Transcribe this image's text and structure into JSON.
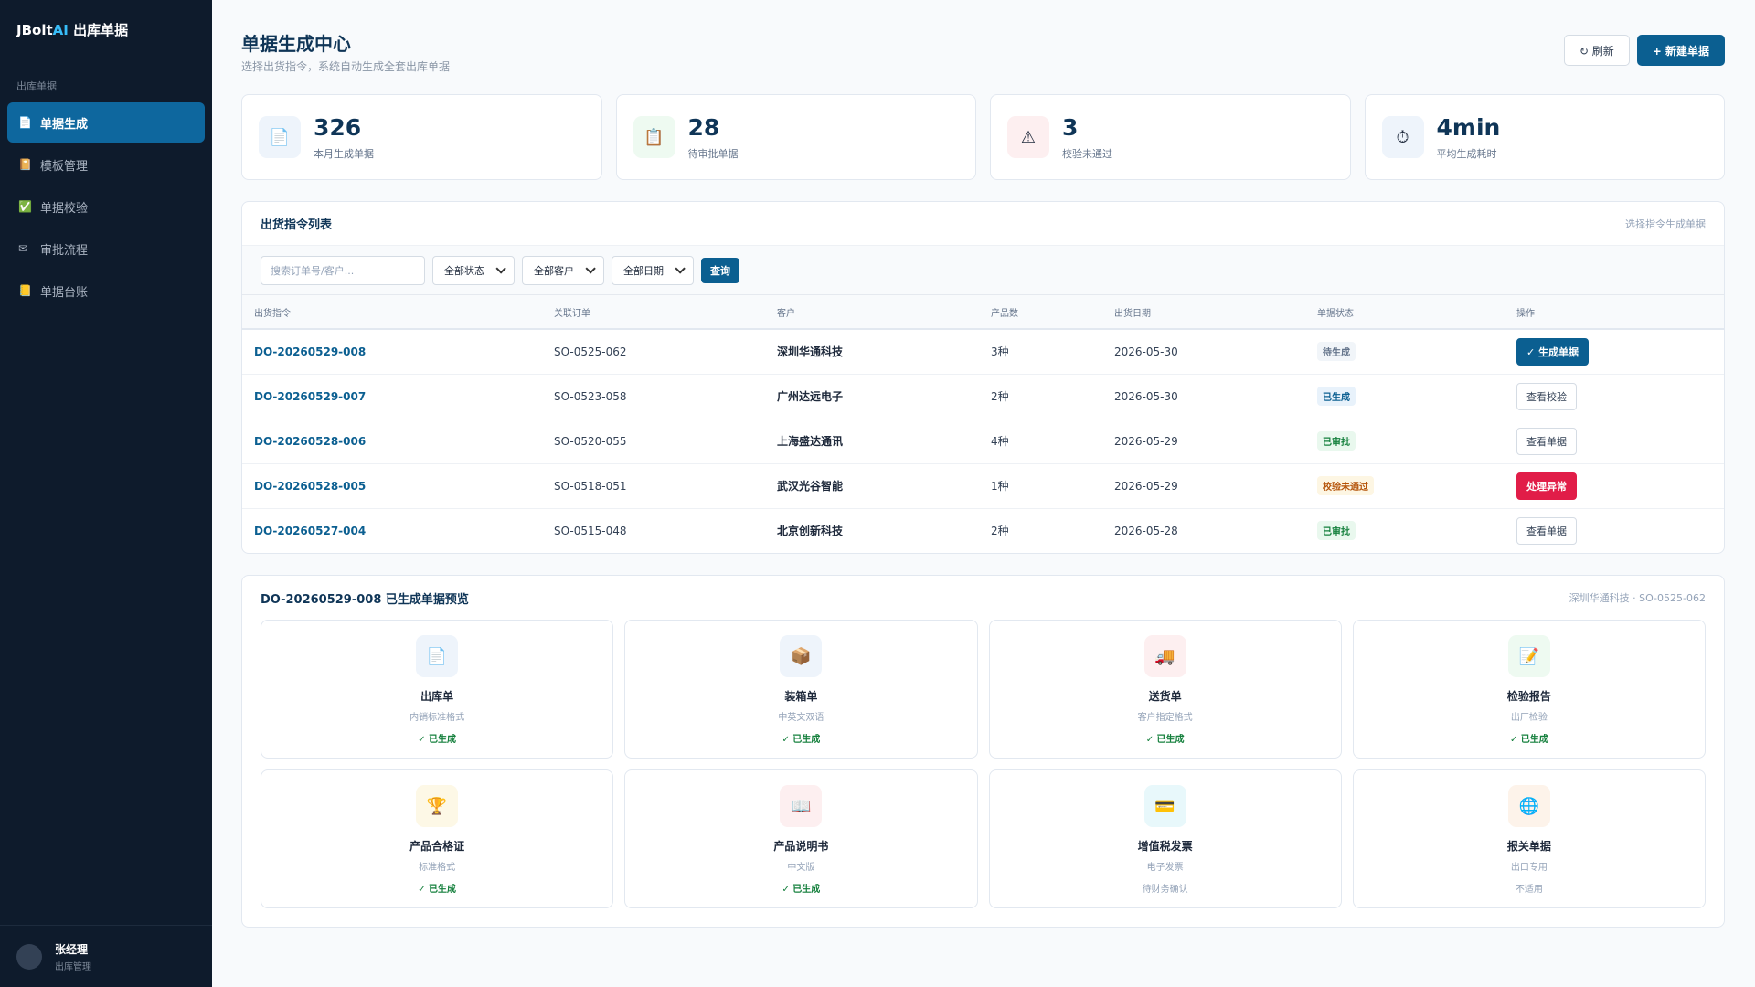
{
  "sidebar": {
    "brand": {
      "prefix": "JBolt",
      "accent": "AI",
      "suffix": "出库单据"
    },
    "section": "出库单据",
    "nav": [
      {
        "icon": "📄",
        "label": "单据生成",
        "active": true
      },
      {
        "icon": "📔",
        "label": "模板管理",
        "active": false
      },
      {
        "icon": "✅",
        "label": "单据校验",
        "active": false
      },
      {
        "icon": "✉",
        "label": "审批流程",
        "active": false
      },
      {
        "icon": "📒",
        "label": "单据台账",
        "active": false
      }
    ],
    "user": {
      "name": "张经理",
      "role": "出库管理"
    }
  },
  "header": {
    "title": "单据生成中心",
    "subtitle": "选择出货指令，系统自动生成全套出库单据",
    "buttons": [
      "↻ 刷新",
      "+ 新建单据"
    ]
  },
  "stats": [
    {
      "icon": "📄",
      "icon_bg": "#eef4fb",
      "value": 326,
      "label": "本月生成单据"
    },
    {
      "icon": "📋",
      "icon_bg": "#eefaf1",
      "value": 28,
      "label": "待审批单据"
    },
    {
      "icon": "⚠",
      "icon_bg": "#fdeff0",
      "value": 3,
      "label": "校验未通过"
    },
    {
      "icon": "⏱",
      "icon_bg": "#eef4fb",
      "value": "4min",
      "label": "平均生成耗时"
    }
  ],
  "table": {
    "title": "出货指令列表",
    "hint": "选择指令生成单据",
    "search_placeholder": "搜索订单号/客户...",
    "filters": [
      "全部状态",
      "全部客户",
      "全部日期"
    ],
    "query": "查询",
    "columns": [
      "出货指令",
      "关联订单",
      "客户",
      "产品数",
      "出货日期",
      "单据状态",
      "操作"
    ],
    "rows": [
      {
        "cells": [
          "DO-20260529-008",
          "SO-0525-062",
          "深圳华通科技",
          "3种",
          "2026-05-30",
          "待生成",
          "✓ 生成单据"
        ],
        "status_color": "#64748b",
        "status_bg": "#f1f5f9",
        "action_fill": "#0b5f91"
      },
      {
        "cells": [
          "DO-20260529-007",
          "SO-0523-058",
          "广州达远电子",
          "2种",
          "2026-05-30",
          "已生成",
          "查看校验"
        ],
        "status_color": "#0b5f91",
        "status_bg": "#e8f2fb",
        "action_fill": "#ffffff"
      },
      {
        "cells": [
          "DO-20260528-006",
          "SO-0520-055",
          "上海盛达通讯",
          "4种",
          "2026-05-29",
          "已审批",
          "查看单据"
        ],
        "status_color": "#15803d",
        "status_bg": "#e9f8ee",
        "action_fill": "#ffffff"
      },
      {
        "cells": [
          "DO-20260528-005",
          "SO-0518-051",
          "武汉光谷智能",
          "1种",
          "2026-05-29",
          "校验未通过",
          "处理异常"
        ],
        "status_color": "#b45309",
        "status_bg": "#fdf6e3",
        "action_fill": "#e11d48"
      },
      {
        "cells": [
          "DO-20260527-004",
          "SO-0515-048",
          "北京创新科技",
          "2种",
          "2026-05-28",
          "已审批",
          "查看单据"
        ],
        "status_color": "#15803d",
        "status_bg": "#e9f8ee",
        "action_fill": "#ffffff"
      }
    ]
  },
  "preview": {
    "title": "DO-20260529-008 已生成单据预览",
    "meta": "深圳华通科技 · SO-0525-062",
    "docs": [
      {
        "icon": "📄",
        "icon_bg": "#eef4fb",
        "name": "出库单",
        "format": "内销标准格式",
        "status": "✓ 已生成",
        "status_color": "#15803d"
      },
      {
        "icon": "📦",
        "icon_bg": "#eef4fb",
        "name": "装箱单",
        "format": "中英文双语",
        "status": "✓ 已生成",
        "status_color": "#15803d"
      },
      {
        "icon": "🚚",
        "icon_bg": "#fdeff0",
        "name": "送货单",
        "format": "客户指定格式",
        "status": "✓ 已生成",
        "status_color": "#15803d"
      },
      {
        "icon": "📝",
        "icon_bg": "#eefaf1",
        "name": "检验报告",
        "format": "出厂检验",
        "status": "✓ 已生成",
        "status_color": "#15803d"
      },
      {
        "icon": "🏆",
        "icon_bg": "#fdf8e6",
        "name": "产品合格证",
        "format": "标准格式",
        "status": "✓ 已生成",
        "status_color": "#15803d"
      },
      {
        "icon": "📖",
        "icon_bg": "#fdeff0",
        "name": "产品说明书",
        "format": "中文版",
        "status": "✓ 已生成",
        "status_color": "#15803d"
      },
      {
        "icon": "💳",
        "icon_bg": "#e8f8fb",
        "name": "增值税发票",
        "format": "电子发票",
        "status": "待财务确认",
        "status_color": "#94a3b8"
      },
      {
        "icon": "🌐",
        "icon_bg": "#fdf3ea",
        "name": "报关单据",
        "format": "出口专用",
        "status": "不适用",
        "status_color": "#94a3b8"
      }
    ]
  }
}
